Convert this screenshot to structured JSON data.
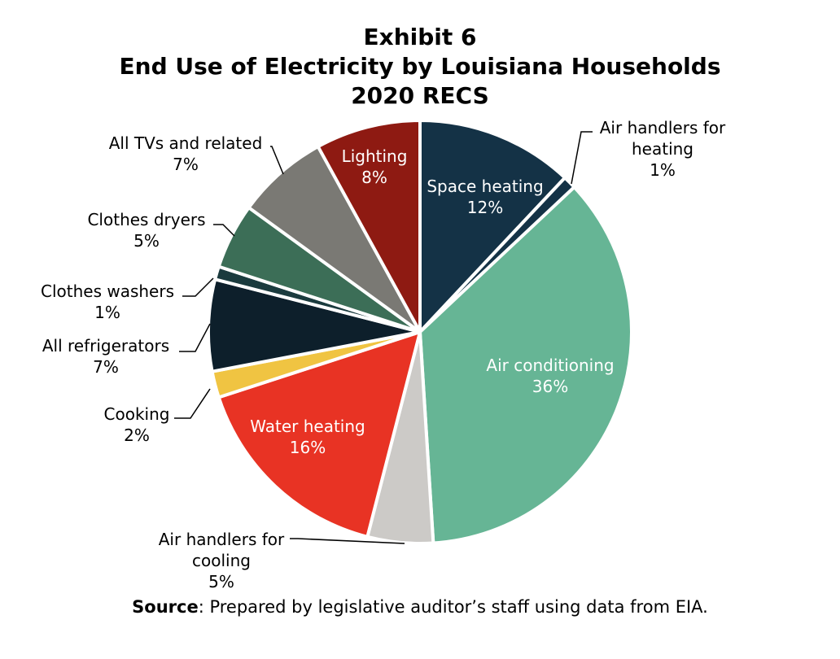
{
  "title_lines": [
    "Exhibit 6",
    "End Use of Electricity by Louisiana Households",
    "2020 RECS"
  ],
  "source": {
    "label": "Source",
    "text": ": Prepared by legislative auditor’s staff using data from EIA."
  },
  "chart_data": {
    "type": "pie",
    "title": "Exhibit 6 End Use of Electricity by Louisiana Households 2020 RECS",
    "slices": [
      {
        "name": "Space heating",
        "label_lines": [
          "Space heating"
        ],
        "value": 12,
        "value_label": "12%",
        "color": "#143246"
      },
      {
        "name": "Air handlers for heating",
        "label_lines": [
          "Air handlers for",
          "heating"
        ],
        "value": 1,
        "value_label": "1%",
        "color": "#143246"
      },
      {
        "name": "Air conditioning",
        "label_lines": [
          "Air conditioning"
        ],
        "value": 36,
        "value_label": "36%",
        "color": "#66b595"
      },
      {
        "name": "Air handlers for cooling",
        "label_lines": [
          "Air handlers for",
          "cooling"
        ],
        "value": 5,
        "value_label": "5%",
        "color": "#cccac7"
      },
      {
        "name": "Water heating",
        "label_lines": [
          "Water heating"
        ],
        "value": 16,
        "value_label": "16%",
        "color": "#e83324"
      },
      {
        "name": "Cooking",
        "label_lines": [
          "Cooking"
        ],
        "value": 2,
        "value_label": "2%",
        "color": "#f0c442"
      },
      {
        "name": "All refrigerators",
        "label_lines": [
          "All refrigerators"
        ],
        "value": 7,
        "value_label": "7%",
        "color": "#0d1f2b"
      },
      {
        "name": "Clothes washers",
        "label_lines": [
          "Clothes washers"
        ],
        "value": 1,
        "value_label": "1%",
        "color": "#1b3b3e"
      },
      {
        "name": "Clothes dryers",
        "label_lines": [
          "Clothes dryers"
        ],
        "value": 5,
        "value_label": "5%",
        "color": "#3c6e57"
      },
      {
        "name": "All TVs and related",
        "label_lines": [
          "All TVs and related"
        ],
        "value": 7,
        "value_label": "7%",
        "color": "#7a7974"
      },
      {
        "name": "Lighting",
        "label_lines": [
          "Lighting"
        ],
        "value": 8,
        "value_label": "8%",
        "color": "#8e1a12"
      }
    ]
  }
}
